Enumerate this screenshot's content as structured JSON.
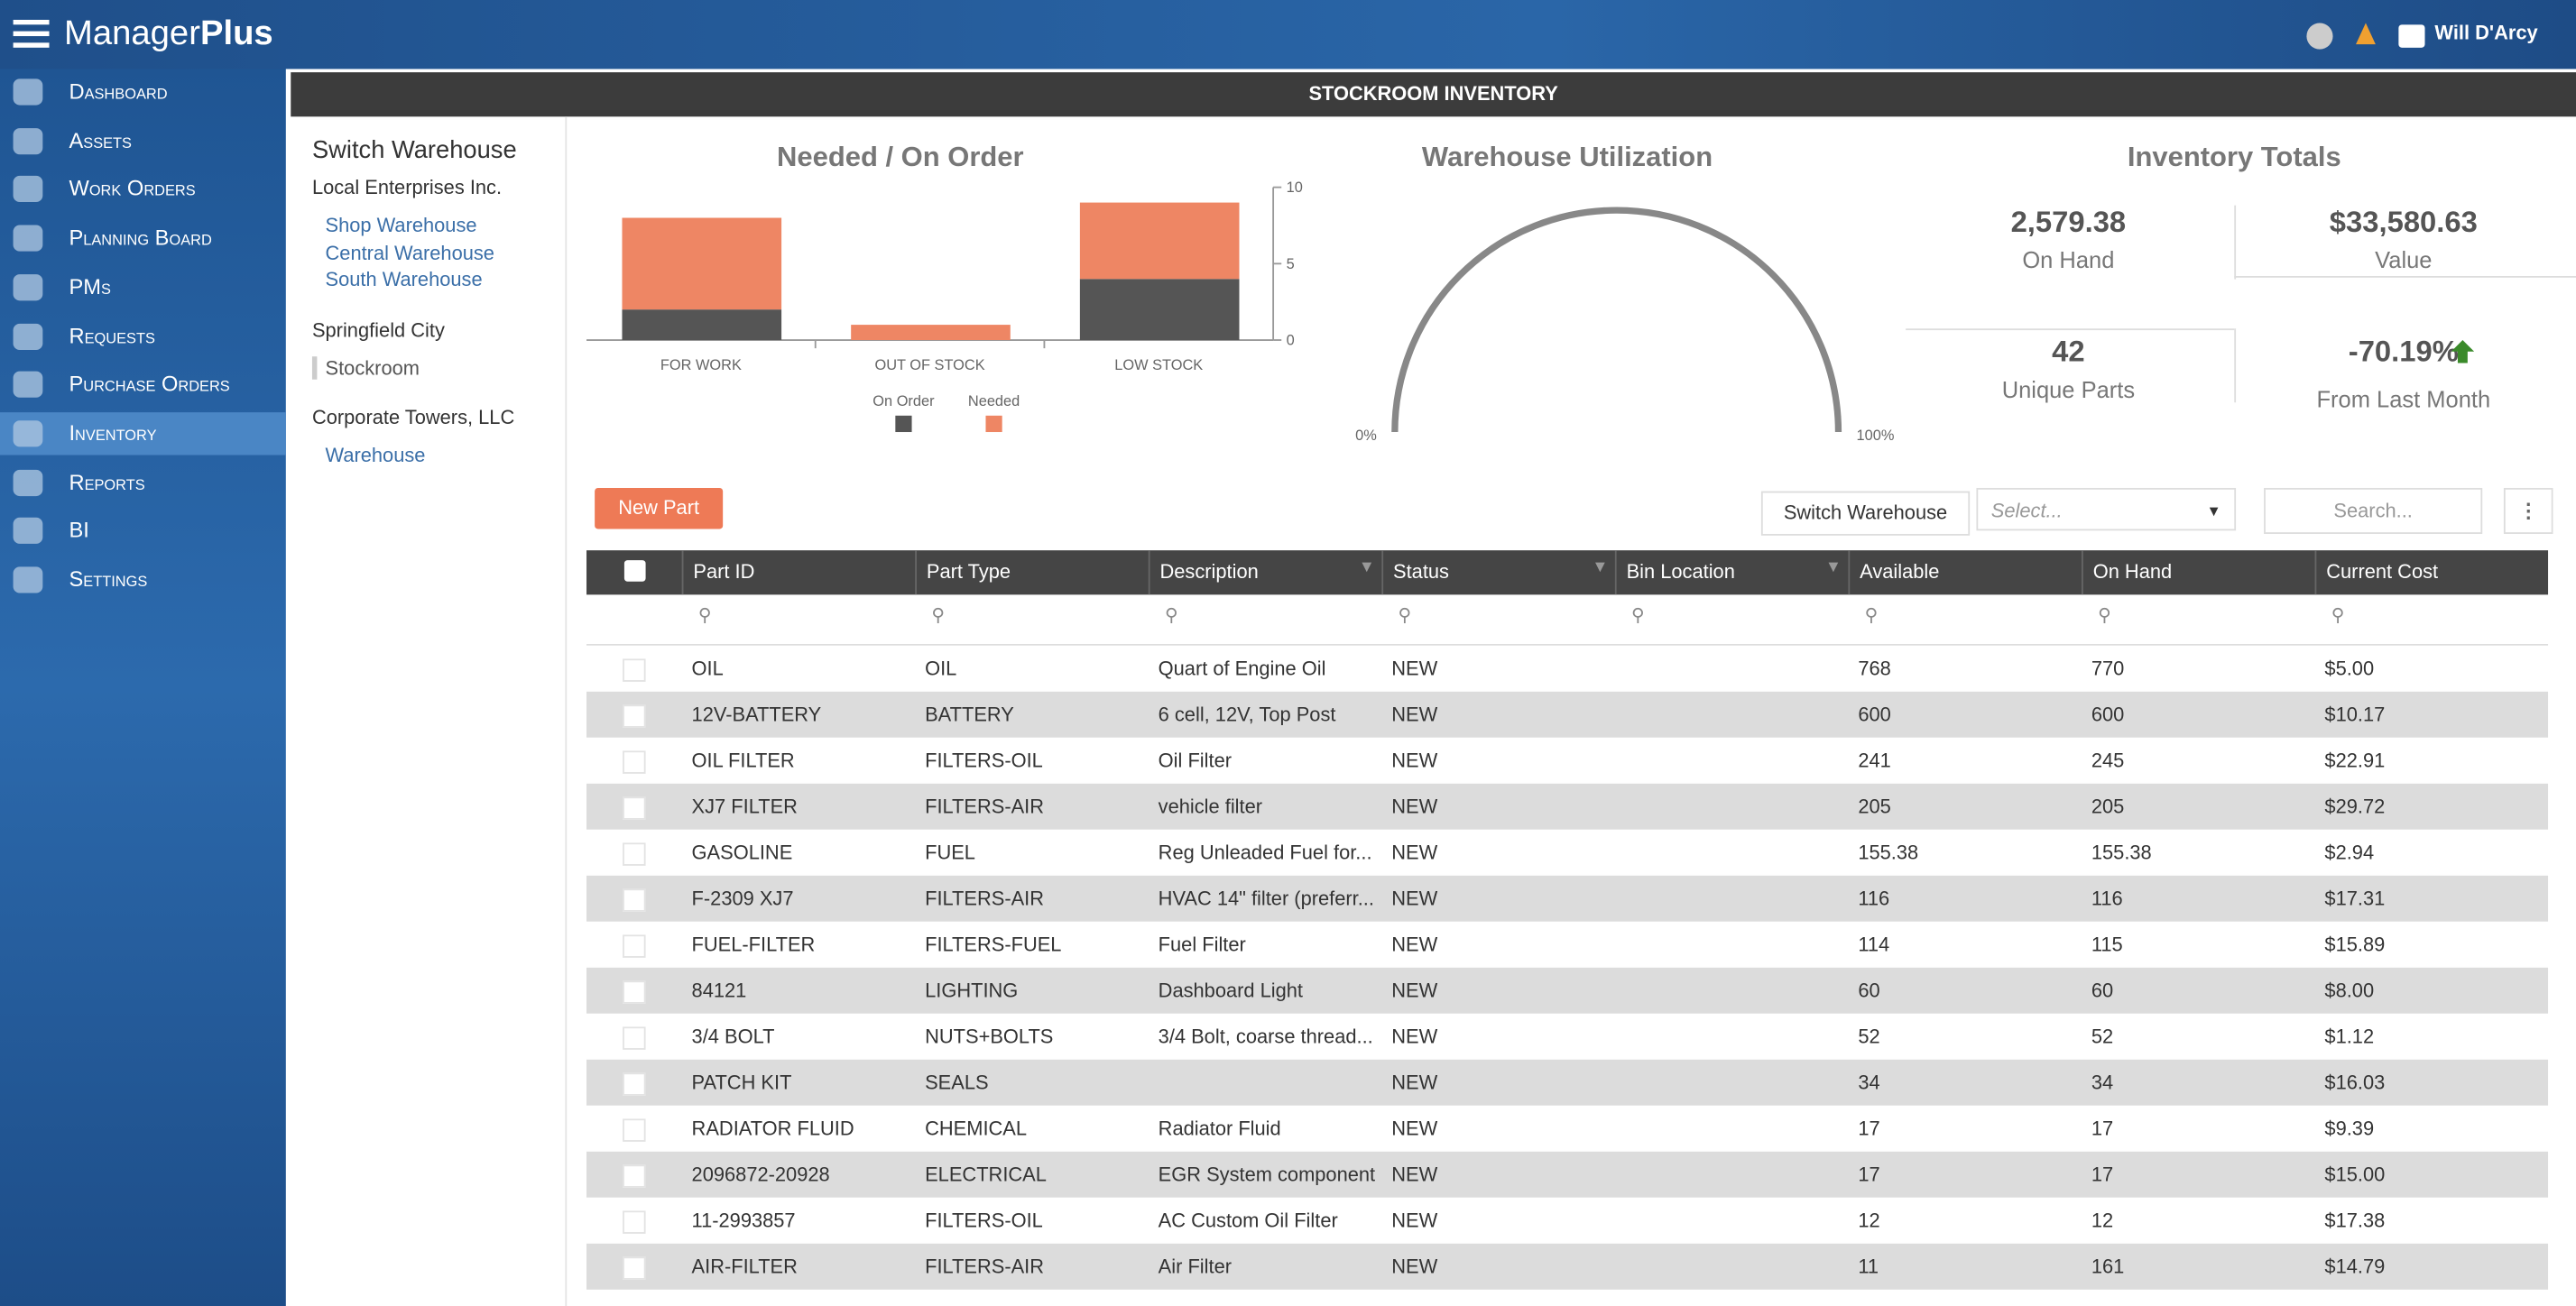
{
  "header": {
    "brand_prefix": "Manager",
    "brand_suffix": "Plus",
    "user": "Will D'Arcy"
  },
  "nav": [
    "Dashboard",
    "Assets",
    "Work Orders",
    "Planning Board",
    "PMs",
    "Requests",
    "Purchase Orders",
    "Inventory",
    "Reports",
    "BI",
    "Settings"
  ],
  "active_nav_index": 7,
  "page_title": "STOCKROOM INVENTORY",
  "warehouses": {
    "title": "Switch Warehouse",
    "groups": [
      {
        "name": "Local Enterprises Inc.",
        "items": [
          "Shop Warehouse",
          "Central Warehouse",
          "South Warehouse"
        ]
      },
      {
        "name": "Springfield City",
        "items": [
          "Stockroom"
        ]
      },
      {
        "name": "Corporate Towers, LLC",
        "items": [
          "Warehouse"
        ]
      }
    ]
  },
  "stock_chart": {
    "type": "bar",
    "title": "Needed / On Order",
    "categories": [
      "FOR WORK",
      "OUT OF STOCK",
      "LOW STOCK"
    ],
    "series": [
      {
        "name": "On Order",
        "color": "#555555",
        "values": [
          2,
          0,
          4
        ]
      },
      {
        "name": "Needed",
        "color": "#ee8664",
        "values": [
          6,
          1,
          5
        ]
      }
    ],
    "ylim": [
      0,
      10
    ],
    "yticks": [
      0,
      5,
      10
    ]
  },
  "utilization": {
    "title": "Warehouse Utilization",
    "min_label": "0%",
    "max_label": "100%"
  },
  "totals": {
    "title": "Inventory Totals",
    "cards": [
      {
        "value": "2,579.38",
        "label": "On Hand"
      },
      {
        "value": "$33,580.63",
        "label": "Value"
      },
      {
        "value": "42",
        "label": "Unique Parts"
      },
      {
        "value": "-70.19%",
        "label": "From Last Month"
      }
    ]
  },
  "toolbar": {
    "new_part": "New Part",
    "switch": "Switch Warehouse",
    "select_placeholder": "Select...",
    "search_placeholder": "Search..."
  },
  "table": {
    "columns": [
      "Part ID",
      "Part Type",
      "Description",
      "Status",
      "Bin Location",
      "Available",
      "On Hand",
      "Current Cost"
    ],
    "rows": [
      {
        "id": "OIL",
        "type": "OIL",
        "desc": "Quart of Engine Oil",
        "status": "NEW",
        "available": 768,
        "on_hand": 770,
        "cost": "$5.00"
      },
      {
        "id": "12V-BATTERY",
        "type": "BATTERY",
        "desc": "6 cell, 12V, Top Post",
        "status": "NEW",
        "available": 600,
        "on_hand": 600,
        "cost": "$10.17"
      },
      {
        "id": "OIL FILTER",
        "type": "FILTERS-OIL",
        "desc": "Oil Filter",
        "status": "NEW",
        "available": 241,
        "on_hand": 245,
        "cost": "$22.91"
      },
      {
        "id": "XJ7 FILTER",
        "type": "FILTERS-AIR",
        "desc": "vehicle filter",
        "status": "NEW",
        "available": 205,
        "on_hand": 205,
        "cost": "$29.72"
      },
      {
        "id": "GASOLINE",
        "type": "FUEL",
        "desc": "Reg Unleaded Fuel for...",
        "status": "NEW",
        "available": 155.38,
        "on_hand": 155.38,
        "cost": "$2.94"
      },
      {
        "id": "F-2309 XJ7",
        "type": "FILTERS-AIR",
        "desc": "HVAC 14\" filter (preferr...",
        "status": "NEW",
        "available": 116,
        "on_hand": 116,
        "cost": "$17.31"
      },
      {
        "id": "FUEL-FILTER",
        "type": "FILTERS-FUEL",
        "desc": "Fuel Filter",
        "status": "NEW",
        "available": 114,
        "on_hand": 115,
        "cost": "$15.89"
      },
      {
        "id": "84121",
        "type": "LIGHTING",
        "desc": "Dashboard Light",
        "status": "NEW",
        "available": 60,
        "on_hand": 60,
        "cost": "$8.00"
      },
      {
        "id": "3/4 BOLT",
        "type": "NUTS+BOLTS",
        "desc": "3/4 Bolt, coarse thread...",
        "status": "NEW",
        "available": 52,
        "on_hand": 52,
        "cost": "$1.12"
      },
      {
        "id": "PATCH KIT",
        "type": "SEALS",
        "status": "NEW",
        "available": 34,
        "on_hand": 34,
        "cost": "$16.03"
      },
      {
        "id": "RADIATOR FLUID",
        "type": "CHEMICAL",
        "desc": "Radiator Fluid",
        "status": "NEW",
        "available": 17,
        "on_hand": 17,
        "cost": "$9.39"
      },
      {
        "id": "2096872-20928",
        "type": "ELECTRICAL",
        "desc": "EGR System component",
        "status": "NEW",
        "available": 17,
        "on_hand": 17,
        "cost": "$15.00"
      },
      {
        "id": "11-2993857",
        "type": "FILTERS-OIL",
        "desc": "AC Custom Oil Filter",
        "status": "NEW",
        "available": 12,
        "on_hand": 12,
        "cost": "$17.38"
      },
      {
        "id": "AIR-FILTER",
        "type": "FILTERS-AIR",
        "desc": "Air Filter",
        "status": "NEW",
        "available": 11,
        "on_hand": 161,
        "cost": "$14.79"
      }
    ]
  }
}
